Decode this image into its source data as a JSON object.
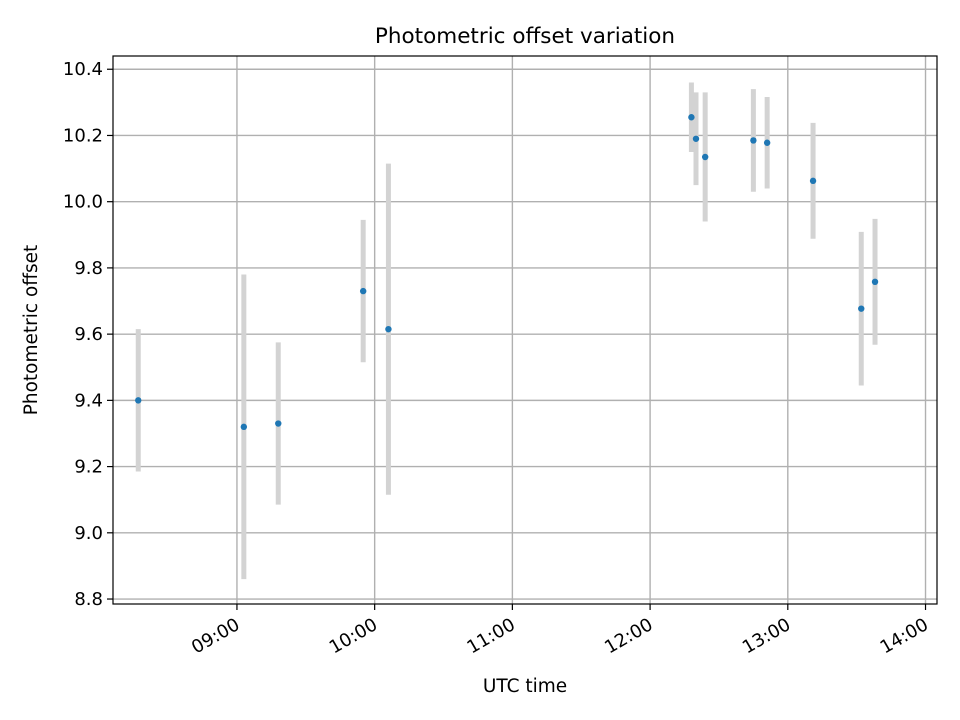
{
  "chart_data": {
    "type": "scatter",
    "title": "Photometric offset variation",
    "xlabel": "UTC time",
    "ylabel": "Photometric offset",
    "x_axis_type": "time",
    "xlim": [
      "08:06",
      "14:05"
    ],
    "ylim": [
      8.785,
      10.44
    ],
    "grid": true,
    "x_ticks": [
      "09:00",
      "10:00",
      "11:00",
      "12:00",
      "13:00",
      "14:00"
    ],
    "y_ticks": [
      "8.8",
      "9.0",
      "9.2",
      "9.4",
      "9.6",
      "9.8",
      "10.0",
      "10.2",
      "10.4"
    ],
    "series": [
      {
        "marker": "point",
        "color": "#1f77b4",
        "errorbar_color": "#d3d3d3",
        "x": [
          "08:17",
          "09:03",
          "09:18",
          "09:55",
          "10:06",
          "12:18",
          "12:20",
          "12:24",
          "12:45",
          "12:51",
          "13:11",
          "13:32",
          "13:38"
        ],
        "y": [
          9.4,
          9.32,
          9.33,
          9.73,
          9.615,
          10.255,
          10.19,
          10.135,
          10.185,
          10.178,
          10.063,
          9.677,
          9.758
        ],
        "yerr": [
          0.215,
          0.46,
          0.245,
          0.215,
          0.5,
          0.105,
          0.14,
          0.195,
          0.155,
          0.138,
          0.175,
          0.232,
          0.19
        ]
      }
    ]
  }
}
